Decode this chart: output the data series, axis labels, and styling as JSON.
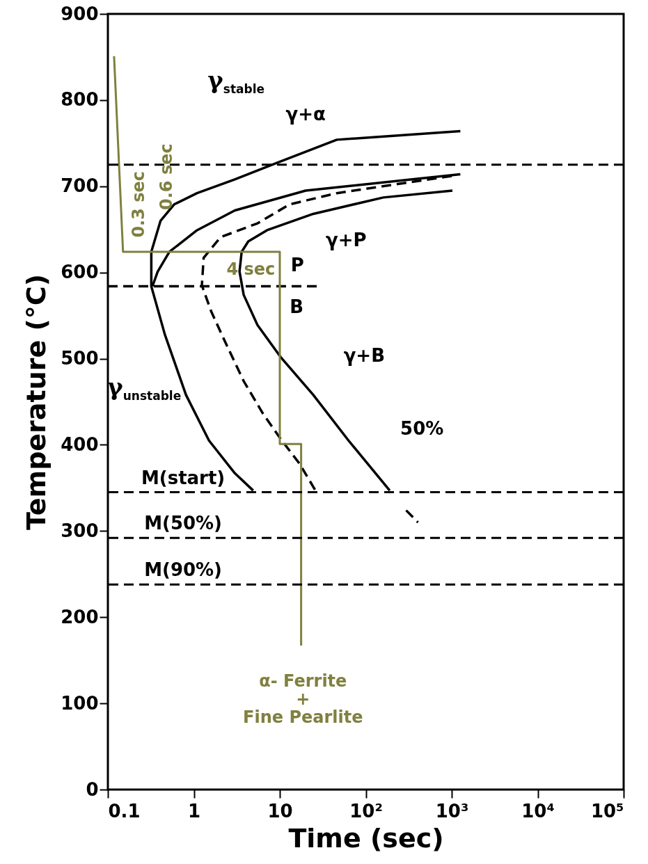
{
  "chart_data": {
    "type": "line",
    "xlabel": "Time (sec)",
    "ylabel": "Temperature  (°C)",
    "log": "x",
    "grid": false,
    "marker": "none",
    "xlim": [
      0.1,
      100000
    ],
    "xticks": [
      0.1,
      1,
      10,
      {
        "value": 100,
        "label": "10²"
      },
      {
        "value": 1000,
        "label": "10³"
      },
      {
        "value": 10000,
        "label": "10⁴"
      },
      {
        "value": 100000,
        "label": "10⁵"
      }
    ],
    "ylim": [
      0,
      900
    ],
    "yticks": [
      0,
      100,
      200,
      300,
      400,
      500,
      600,
      700,
      800,
      900
    ],
    "series": [
      {
        "color": "#000000",
        "line_style": "solid",
        "x": [
          1260,
          46,
          9.7,
          3.0,
          1.09,
          0.59,
          0.41,
          0.32,
          0.32,
          0.46,
          0.81,
          1.5,
          3.0,
          4.9
        ],
        "values": [
          764,
          754,
          728,
          708,
          692,
          679,
          660,
          624,
          584,
          528,
          458,
          405,
          367,
          347
        ]
      },
      {
        "color": "#000000",
        "line_style": "solid",
        "x": [
          1260,
          20,
          3.0,
          1.09,
          0.52,
          0.38,
          0.33
        ],
        "values": [
          714,
          695,
          672,
          649,
          624,
          601,
          584
        ]
      },
      {
        "color": "#000000",
        "line_style": "dashed",
        "x": [
          1000,
          46,
          13,
          5.5,
          2.05,
          1.3,
          1.24,
          1.59,
          2.3,
          3.8,
          6.3,
          10.2,
          17,
          26
        ],
        "values": [
          712,
          692,
          679,
          657,
          641,
          617,
          585,
          555,
          520,
          474,
          437,
          407,
          378,
          347
        ]
      },
      {
        "color": "#000000",
        "line_style": "solid",
        "x": [
          1020,
          160,
          24.5,
          7.1,
          4.3,
          3.6,
          3.4,
          3.8,
          5.5,
          10.2,
          24.5,
          63,
          190
        ],
        "values": [
          695,
          687,
          668,
          649,
          636,
          624,
          601,
          574,
          539,
          502,
          458,
          405,
          347
        ]
      },
      {
        "color": "#000000",
        "line_style": "dashed",
        "x": [
          295,
          405
        ],
        "values": [
          324,
          310
        ]
      },
      {
        "color": "#000000",
        "line_style": "dashed",
        "x": [
          0.1,
          28
        ],
        "values": [
          584,
          584
        ]
      },
      {
        "color": "#808040",
        "line_style": "solid",
        "x": [
          0.118,
          0.15,
          10,
          10,
          17.7,
          17.7
        ],
        "values": [
          851,
          624,
          624,
          401,
          401,
          167
        ]
      }
    ],
    "ref_lines": [
      {
        "axis": "y",
        "value": 725,
        "line_style": "dashed",
        "color": "#000000"
      },
      {
        "axis": "y",
        "value": 345,
        "line_style": "dashed",
        "color": "#000000"
      },
      {
        "axis": "y",
        "value": 292,
        "line_style": "dashed",
        "color": "#000000"
      },
      {
        "axis": "y",
        "value": 238,
        "line_style": "dashed",
        "color": "#000000"
      }
    ],
    "annotations": [
      "γ$_{stable}$",
      "γ+α",
      "γ+P",
      "P",
      "B",
      "γ+B",
      "γ$_{unstable}$",
      "50%",
      "M(start)",
      "M(50%)",
      "M(90%)",
      "0.3 sec",
      "0.6 sec",
      "4 sec",
      "α- Ferrite\n+\nFine Pearlite"
    ]
  }
}
